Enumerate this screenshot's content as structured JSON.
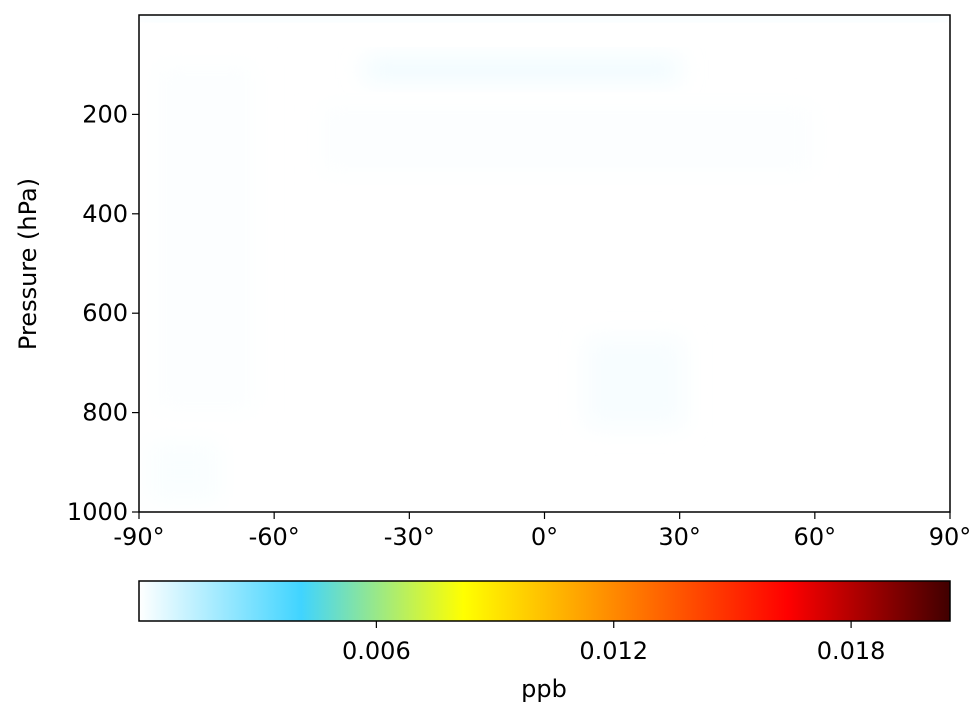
{
  "chart_data": {
    "type": "heatmap",
    "title": "",
    "xlabel": "",
    "ylabel": "Pressure (hPa)",
    "x_unit": "degrees latitude",
    "xlim": [
      -90,
      90
    ],
    "ylim": [
      1000,
      0
    ],
    "y_inverted": true,
    "x_ticks": [
      {
        "value": -90,
        "label": "-90°"
      },
      {
        "value": -60,
        "label": "-60°"
      },
      {
        "value": -30,
        "label": "-30°"
      },
      {
        "value": 0,
        "label": "0°"
      },
      {
        "value": 30,
        "label": "30°"
      },
      {
        "value": 60,
        "label": "60°"
      },
      {
        "value": 90,
        "label": "90°"
      }
    ],
    "y_ticks": [
      {
        "value": 200,
        "label": "200"
      },
      {
        "value": 400,
        "label": "400"
      },
      {
        "value": 600,
        "label": "600"
      },
      {
        "value": 800,
        "label": "800"
      },
      {
        "value": 1000,
        "label": "1000"
      }
    ],
    "colormap": [
      "#ffffff",
      "#40d4ff",
      "#ffff00",
      "#ff8000",
      "#ff0000",
      "#400000"
    ],
    "colorbar": {
      "label": "ppb",
      "range": [
        0,
        0.0205
      ],
      "ticks": [
        {
          "value": 0.006,
          "label": "0.006"
        },
        {
          "value": 0.012,
          "label": "0.012"
        },
        {
          "value": 0.018,
          "label": "0.018"
        }
      ]
    },
    "cells": [
      {
        "lat": 0,
        "p": 5,
        "w": 180,
        "h": 10,
        "value": 0.0007
      },
      {
        "lat": -5,
        "p": 110,
        "w": 70,
        "h": 45,
        "value": 0.00035
      },
      {
        "lat": 22,
        "p": 730,
        "w": 4,
        "h": 20,
        "value": 0.0028
      },
      {
        "lat": 22,
        "p": 755,
        "w": 4,
        "h": 15,
        "value": 0.0022
      },
      {
        "lat": 20,
        "p": 740,
        "w": 22,
        "h": 180,
        "value": 0.00018
      },
      {
        "lat": -80,
        "p": 920,
        "w": 16,
        "h": 120,
        "value": 0.00012
      },
      {
        "lat": -75,
        "p": 450,
        "w": 22,
        "h": 700,
        "value": 6e-05
      },
      {
        "lat": 5,
        "p": 250,
        "w": 110,
        "h": 140,
        "value": 6e-05
      }
    ]
  }
}
